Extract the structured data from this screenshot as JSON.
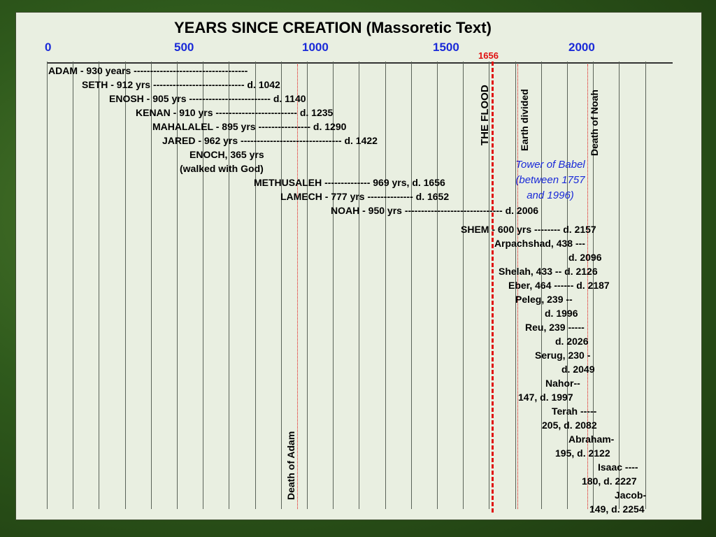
{
  "title": "YEARS SINCE CREATION (Massoretic Text)",
  "axis_ticks": [
    "0",
    "500",
    "1000",
    "1500",
    "2000"
  ],
  "flood_year_label": "1656",
  "rows": [
    "ADAM - 930 years -----------------------------------",
    "SETH - 912 yrs ---------------------------- d. 1042",
    "ENOSH - 905 yrs ------------------------- d. 1140",
    "KENAN - 910 yrs ------------------------- d. 1235",
    "MAHALALEL - 895 yrs ---------------- d. 1290",
    "JARED - 962 yrs ------------------------------- d. 1422",
    "ENOCH, 365 yrs",
    "(walked with God)",
    "METHUSALEH -------------- 969 yrs, d. 1656",
    "LAMECH - 777 yrs -------------- d. 1652",
    "NOAH - 950 yrs ------------------------------ d. 2006",
    "SHEM - 600 yrs -------- d. 2157",
    "Arpachshad,  438 ---",
    "d. 2096",
    "Shelah, 433 -- d. 2126",
    "Eber, 464 ------ d. 2187",
    "Peleg, 239 --",
    "d. 1996",
    "Reu, 239 -----",
    "d. 2026",
    "Serug, 230 -",
    "d. 2049",
    "Nahor--",
    "147, d. 1997",
    "Terah -----",
    "205, d. 2082",
    "Abraham-",
    "195, d. 2122",
    "Isaac ----",
    "180, d. 2227",
    "Jacob-",
    "149, d. 2254"
  ],
  "vertical_labels": {
    "flood": "THE FLOOD",
    "earth_divided": "Earth divided",
    "death_noah": "Death of Noah",
    "death_adam": "Death of Adam"
  },
  "babel_note": [
    "Tower of Babel",
    "(between 1757",
    "and 1996)"
  ],
  "colors": {
    "tick": "#1a2ad8",
    "flood_line": "#e01010",
    "panel": "#e9efe1"
  }
}
